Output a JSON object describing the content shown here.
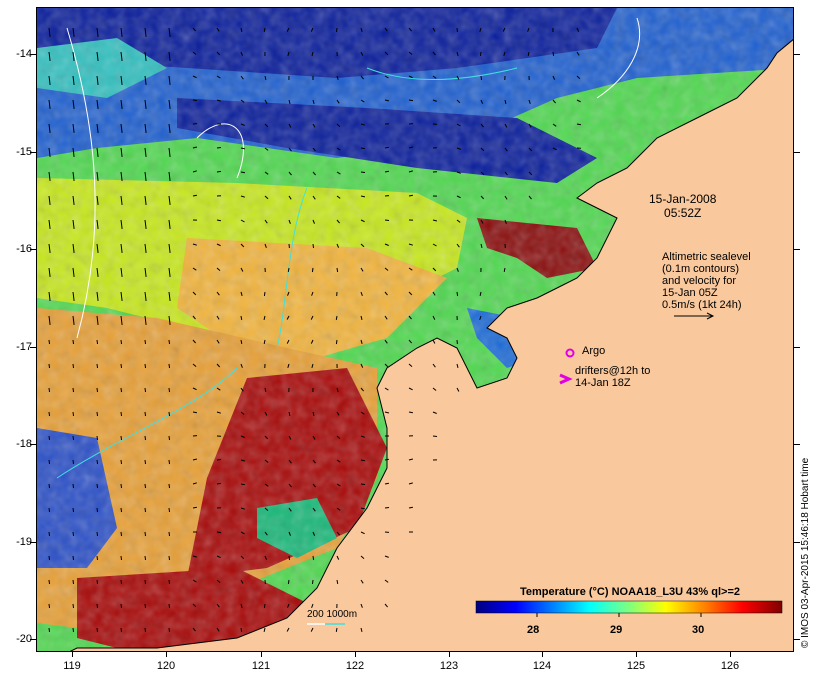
{
  "map": {
    "date_line1": "15-Jan-2008",
    "date_line2": "05:52Z",
    "altimetry_lines": [
      "Altimetric sealevel",
      "(0.1m contours)",
      "and velocity for",
      "15-Jan 05Z",
      "0.5m/s (1kt 24h)"
    ],
    "argo_label": "Argo",
    "argo_icon": "circle-marker-icon",
    "drifter_icon": "chevron-marker-icon",
    "drifter_lines": [
      "drifters@12h to",
      "14-Jan 18Z"
    ],
    "marker_color": "#e000e0",
    "depth_legend": "200  1000m",
    "colorbar_title": "Temperature (°C) NOAA18_L3U 43% ql>=2",
    "colorbar_ticks": [
      "28",
      "29",
      "30"
    ],
    "credit": "© IMOS 03-Apr-2015 15:46:18 Hobart time",
    "y_ticks": [
      "-14",
      "-15",
      "-16",
      "-17",
      "-18",
      "-19",
      "-20"
    ],
    "x_ticks": [
      "119",
      "120",
      "121",
      "122",
      "123",
      "124",
      "125",
      "126"
    ],
    "land_color": "#f9c89c",
    "colorbar_colors": [
      "#00007f",
      "#0000ff",
      "#007fff",
      "#00ffff",
      "#7fff7f",
      "#ffff00",
      "#ff7f00",
      "#ff0000",
      "#7f0000"
    ]
  }
}
